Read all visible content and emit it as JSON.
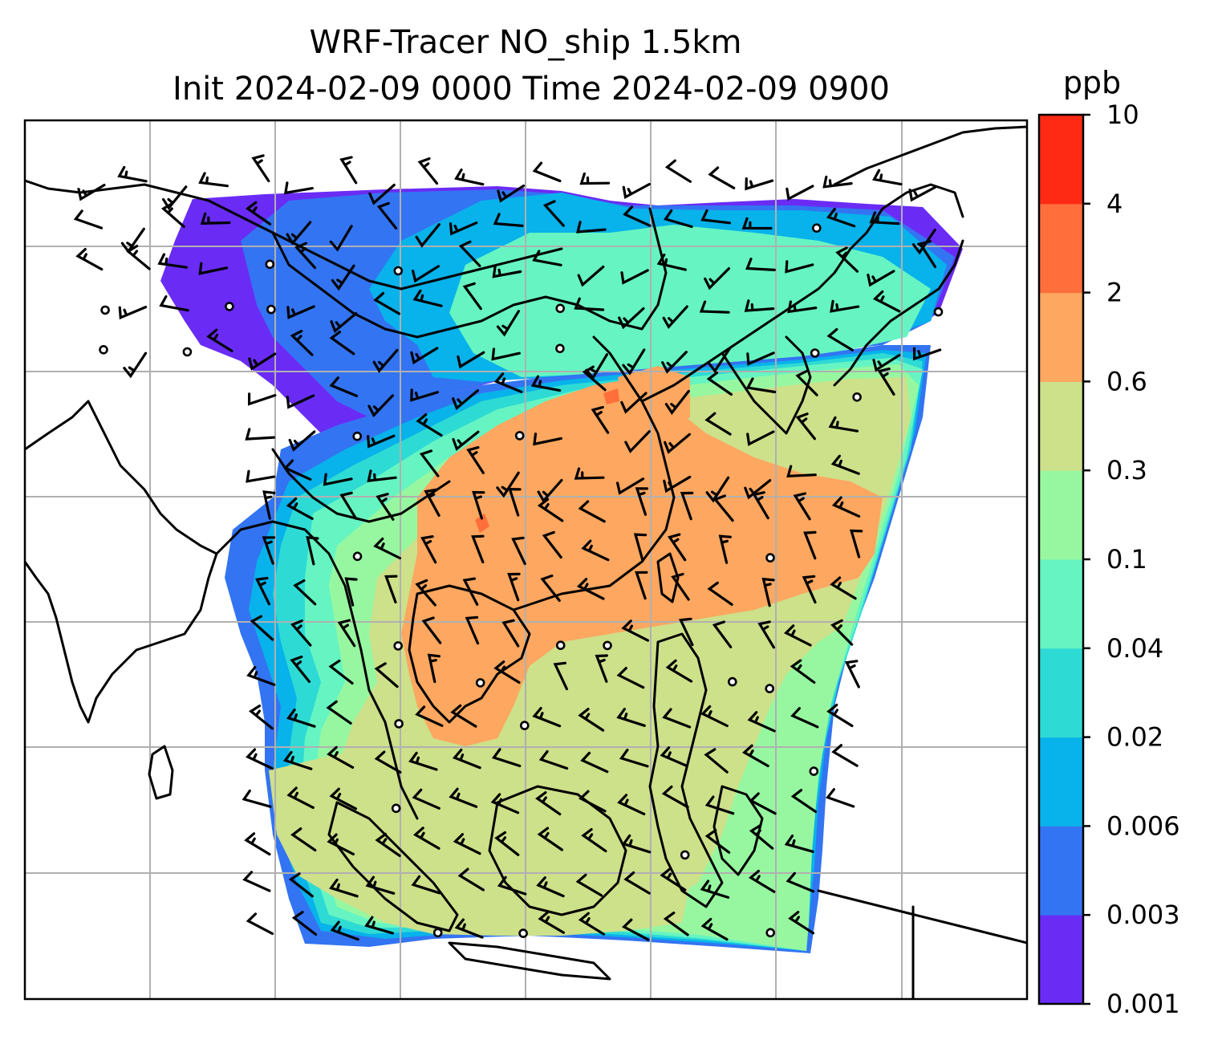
{
  "figure": {
    "title_line1": "WRF-Tracer NO_ship 1.5km",
    "title_line2": "Init 2024-02-09 0000 Time 2024-02-09 0900"
  },
  "colorbar": {
    "unit": "ppb",
    "levels": [
      "0.001",
      "0.003",
      "0.006",
      "0.02",
      "0.04",
      "0.1",
      "0.3",
      "0.6",
      "2",
      "4",
      "10"
    ],
    "colors": [
      "#6a2cf5",
      "#3374f2",
      "#08b2ea",
      "#2edbd4",
      "#66f5c2",
      "#97f7a0",
      "#cde08a",
      "#fda760",
      "#ff6e3b",
      "#fe2a14"
    ]
  },
  "map": {
    "gridlines": true,
    "field": "NO_ship tracer concentration",
    "overlay": "wind barbs",
    "colors": {
      "coast": "#000000",
      "grid": "#b0b0b0",
      "outside": "#ffffff"
    }
  }
}
